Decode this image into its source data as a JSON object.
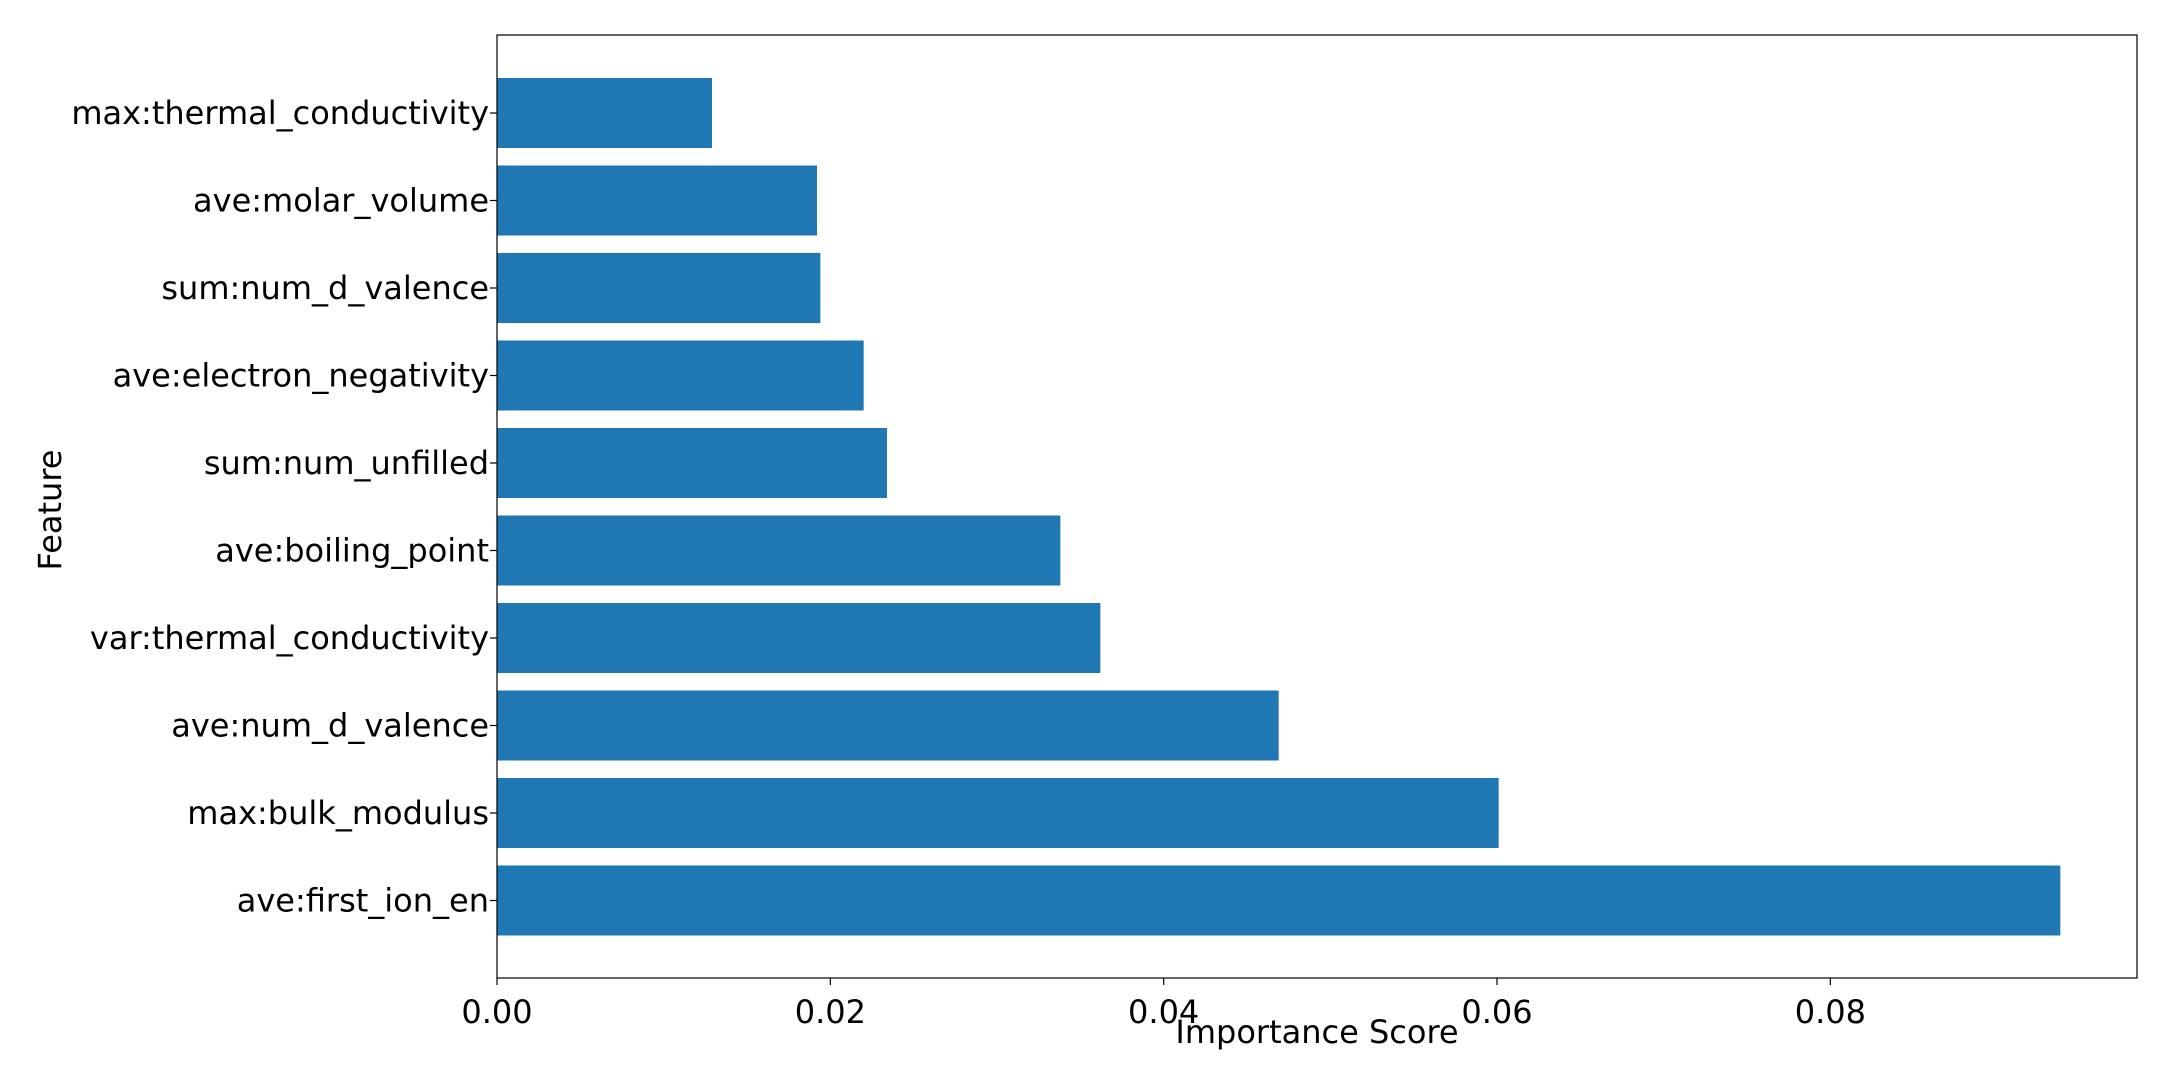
{
  "chart_data": {
    "type": "bar",
    "orientation": "horizontal",
    "title": "",
    "xlabel": "Importance Score",
    "ylabel": "Feature",
    "xlim": [
      0,
      0.0984
    ],
    "x_ticks": [
      0.0,
      0.02,
      0.04,
      0.06,
      0.08
    ],
    "x_tick_labels": [
      "0.00",
      "0.02",
      "0.04",
      "0.06",
      "0.08"
    ],
    "grid": false,
    "legend": "none",
    "bar_color": "#1f77b4",
    "categories": [
      "max:thermal_conductivity",
      "ave:molar_volume",
      "sum:num_d_valence",
      "ave:electron_negativity",
      "sum:num_unfilled",
      "ave:boiling_point",
      "var:thermal_conductivity",
      "ave:num_d_valence",
      "max:bulk_modulus",
      "ave:first_ion_en"
    ],
    "values": [
      0.0129,
      0.0192,
      0.0194,
      0.022,
      0.0234,
      0.0338,
      0.0362,
      0.0469,
      0.0601,
      0.0938
    ]
  }
}
